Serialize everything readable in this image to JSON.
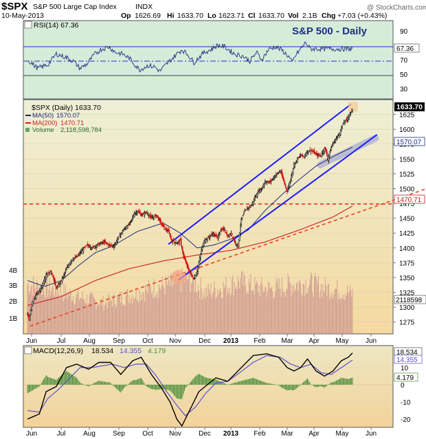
{
  "header": {
    "symbol": "$SPX",
    "name": "S&P 500 Large Cap Index",
    "exchange": "INDX",
    "date": "10-May-2013",
    "open_label": "Op",
    "open": "1626.69",
    "high_label": "Hi",
    "high": "1633.70",
    "low_label": "Lo",
    "low": "1623.71",
    "close_label": "Cl",
    "close": "1633.70",
    "volume_label": "Vol",
    "volume": "2.1B",
    "change_label": "Chg",
    "change": "+7.03 (+0.43%)",
    "watermark": "@ StockCharts.com"
  },
  "colors": {
    "rsi_bg": "#d5ecd9",
    "price_bg_top": "#eef0d6",
    "price_bg_bottom": "#f5d9a0",
    "macd_bg_top": "#eee7c3",
    "macd_bg_bottom": "#f3d29a",
    "channel": "#1a1aff",
    "ma50": "#1c2a7a",
    "ma200": "#cc1b1b",
    "support": "#e8421a",
    "hline": "#e6391c",
    "volume": "#c98f8f",
    "up_candle": "#000000",
    "down_candle": "#d01010",
    "macd_line": "#000000",
    "signal_line": "#5a4fd1",
    "histogram": "#4c8f3c",
    "current_price_box": "#000000"
  },
  "chart_data": [
    {
      "type": "line",
      "panel": "rsi",
      "label": "RSI(14) 67.36",
      "series": [
        {
          "name": "RSI(14)",
          "last": 67.36
        }
      ],
      "y_ticks": [
        90,
        70,
        50,
        30
      ],
      "reference_lines": [
        70,
        50,
        30
      ],
      "annotation": "S&P 500 - Daily",
      "last_label": "67.36",
      "anchors": [
        [
          0,
          52
        ],
        [
          12,
          40
        ],
        [
          24,
          45
        ],
        [
          34,
          60
        ],
        [
          46,
          55
        ],
        [
          54,
          50
        ],
        [
          62,
          40
        ],
        [
          70,
          46
        ],
        [
          78,
          58
        ],
        [
          86,
          66
        ],
        [
          96,
          70
        ],
        [
          104,
          62
        ],
        [
          112,
          60
        ],
        [
          120,
          54
        ],
        [
          132,
          38
        ],
        [
          142,
          44
        ],
        [
          150,
          42
        ],
        [
          156,
          36
        ],
        [
          164,
          46
        ],
        [
          176,
          60
        ],
        [
          182,
          66
        ],
        [
          190,
          58
        ],
        [
          196,
          48
        ],
        [
          208,
          62
        ],
        [
          216,
          66
        ],
        [
          224,
          72
        ],
        [
          232,
          70
        ],
        [
          244,
          60
        ],
        [
          254,
          57
        ],
        [
          262,
          50
        ],
        [
          270,
          62
        ],
        [
          276,
          52
        ],
        [
          284,
          66
        ],
        [
          292,
          70
        ],
        [
          300,
          65
        ],
        [
          308,
          56
        ],
        [
          312,
          48
        ],
        [
          316,
          58
        ],
        [
          324,
          70
        ],
        [
          328,
          76
        ],
        [
          333,
          67
        ]
      ]
    },
    {
      "type": "candlestick",
      "panel": "price",
      "ticker_label": "$SPX (Daily) 1633.70",
      "legend": [
        {
          "name": "MA(50)",
          "value": "1570.07"
        },
        {
          "name": "MA(200)",
          "value": "1470.71"
        },
        {
          "name": "Volume",
          "value": "2,118,598,784"
        }
      ],
      "x_ticks": [
        "Jun",
        "Jul",
        "Aug",
        "Sep",
        "Oct",
        "Nov",
        "Dec",
        "2013",
        "Feb",
        "Mar",
        "Apr",
        "May",
        "Jun"
      ],
      "y_ticks": [
        1625,
        1600,
        1575,
        1550,
        1525,
        1500,
        1475,
        1450,
        1425,
        1400,
        1375,
        1350,
        1325,
        1300,
        1275
      ],
      "ylim": [
        1255,
        1650
      ],
      "volume_ticks": [
        "4B",
        "3B",
        "2B",
        "1B"
      ],
      "volume_last_label": "2118598",
      "ma50_last": "1570.07",
      "ma200_last": "1470.71",
      "close_last": "1633.70",
      "horizontal_level": 1474,
      "price_anchors": [
        [
          0,
          1290
        ],
        [
          2,
          1278
        ],
        [
          6,
          1310
        ],
        [
          10,
          1320
        ],
        [
          16,
          1332
        ],
        [
          22,
          1355
        ],
        [
          28,
          1360
        ],
        [
          34,
          1332
        ],
        [
          40,
          1345
        ],
        [
          46,
          1365
        ],
        [
          52,
          1380
        ],
        [
          58,
          1385
        ],
        [
          64,
          1395
        ],
        [
          70,
          1405
        ],
        [
          76,
          1400
        ],
        [
          82,
          1405
        ],
        [
          90,
          1410
        ],
        [
          96,
          1405
        ],
        [
          102,
          1403
        ],
        [
          108,
          1420
        ],
        [
          114,
          1432
        ],
        [
          120,
          1440
        ],
        [
          126,
          1458
        ],
        [
          130,
          1462
        ],
        [
          134,
          1455
        ],
        [
          140,
          1460
        ],
        [
          146,
          1450
        ],
        [
          152,
          1455
        ],
        [
          158,
          1440
        ],
        [
          162,
          1432
        ],
        [
          166,
          1428
        ],
        [
          170,
          1412
        ],
        [
          176,
          1408
        ],
        [
          180,
          1413
        ],
        [
          184,
          1385
        ],
        [
          188,
          1370
        ],
        [
          192,
          1356
        ],
        [
          196,
          1348
        ],
        [
          200,
          1360
        ],
        [
          204,
          1390
        ],
        [
          208,
          1412
        ],
        [
          212,
          1416
        ],
        [
          218,
          1424
        ],
        [
          224,
          1418
        ],
        [
          228,
          1430
        ],
        [
          232,
          1432
        ],
        [
          236,
          1418
        ],
        [
          240,
          1425
        ],
        [
          244,
          1410
        ],
        [
          248,
          1403
        ],
        [
          252,
          1448
        ],
        [
          256,
          1462
        ],
        [
          260,
          1468
        ],
        [
          264,
          1472
        ],
        [
          268,
          1485
        ],
        [
          272,
          1495
        ],
        [
          276,
          1500
        ],
        [
          280,
          1512
        ],
        [
          284,
          1510
        ],
        [
          288,
          1515
        ],
        [
          292,
          1522
        ],
        [
          298,
          1530
        ],
        [
          302,
          1512
        ],
        [
          306,
          1495
        ],
        [
          310,
          1516
        ],
        [
          314,
          1540
        ],
        [
          318,
          1550
        ],
        [
          322,
          1556
        ],
        [
          326,
          1554
        ],
        [
          330,
          1563
        ],
        [
          334,
          1565
        ],
        [
          338,
          1560
        ],
        [
          342,
          1556
        ],
        [
          346,
          1556
        ],
        [
          350,
          1568
        ],
        [
          352,
          1562
        ],
        [
          354,
          1548
        ],
        [
          356,
          1562
        ],
        [
          360,
          1576
        ],
        [
          364,
          1585
        ],
        [
          368,
          1594
        ],
        [
          372,
          1610
        ],
        [
          376,
          1616
        ],
        [
          380,
          1626
        ],
        [
          383,
          1633.7
        ]
      ],
      "ma50_anchors": [
        [
          0,
          1345
        ],
        [
          20,
          1335
        ],
        [
          40,
          1345
        ],
        [
          60,
          1370
        ],
        [
          80,
          1392
        ],
        [
          100,
          1403
        ],
        [
          130,
          1428
        ],
        [
          160,
          1442
        ],
        [
          180,
          1425
        ],
        [
          200,
          1400
        ],
        [
          220,
          1405
        ],
        [
          240,
          1415
        ],
        [
          260,
          1430
        ],
        [
          280,
          1463
        ],
        [
          300,
          1490
        ],
        [
          320,
          1515
        ],
        [
          340,
          1538
        ],
        [
          360,
          1554
        ],
        [
          383,
          1570
        ]
      ],
      "ma200_anchors": [
        [
          0,
          1303
        ],
        [
          40,
          1318
        ],
        [
          80,
          1345
        ],
        [
          120,
          1365
        ],
        [
          160,
          1378
        ],
        [
          200,
          1388
        ],
        [
          240,
          1396
        ],
        [
          280,
          1410
        ],
        [
          320,
          1430
        ],
        [
          360,
          1452
        ],
        [
          383,
          1470.71
        ]
      ],
      "channel_upper": [
        [
          166,
          1406
        ],
        [
          381,
          1642
        ]
      ],
      "channel_lower": [
        [
          178,
          1346
        ],
        [
          412,
          1591
        ]
      ],
      "support_line": [
        [
          3,
          1268
        ],
        [
          410,
          1470
        ]
      ],
      "circle_at": [
        178,
        1350
      ],
      "recent_highlight": [
        [
          345,
          1540
        ],
        [
          410,
          1585
        ]
      ],
      "volume_baseline_bars": 384,
      "volume_anchors": [
        [
          0,
          3.2
        ],
        [
          30,
          2.9
        ],
        [
          60,
          2.4
        ],
        [
          90,
          2.0
        ],
        [
          120,
          2.5
        ],
        [
          150,
          3.0
        ],
        [
          170,
          3.2
        ],
        [
          190,
          3.6
        ],
        [
          210,
          2.7
        ],
        [
          230,
          3.0
        ],
        [
          250,
          3.4
        ],
        [
          270,
          3.0
        ],
        [
          290,
          2.9
        ],
        [
          310,
          3.2
        ],
        [
          330,
          3.3
        ],
        [
          350,
          3.0
        ],
        [
          370,
          2.8
        ],
        [
          383,
          2.6
        ]
      ]
    },
    {
      "type": "line",
      "panel": "macd",
      "label": "MACD(12,26,9) 18.534, 14.355, 4.179",
      "macd_name": "MACD(12,26,9)",
      "macd_value": "18.534",
      "signal_value": "14.355",
      "hist_value": "4.179",
      "y_ticks": [
        10,
        0,
        -10,
        -20
      ],
      "x_ticks": [
        "Jun",
        "Jul",
        "Aug",
        "Sep",
        "Oct",
        "Nov",
        "Dec",
        "2013",
        "Feb",
        "Mar",
        "Apr",
        "May",
        "Jun"
      ],
      "macd_anchors": [
        [
          0,
          -20
        ],
        [
          14,
          -17
        ],
        [
          22,
          -4
        ],
        [
          34,
          -1
        ],
        [
          46,
          10
        ],
        [
          58,
          12
        ],
        [
          72,
          9
        ],
        [
          84,
          13
        ],
        [
          98,
          13
        ],
        [
          110,
          6
        ],
        [
          124,
          14
        ],
        [
          134,
          16
        ],
        [
          146,
          6
        ],
        [
          158,
          -2
        ],
        [
          168,
          -10
        ],
        [
          176,
          -20
        ],
        [
          182,
          -24
        ],
        [
          192,
          -14
        ],
        [
          202,
          -4
        ],
        [
          212,
          0
        ],
        [
          222,
          4
        ],
        [
          236,
          2
        ],
        [
          252,
          10
        ],
        [
          266,
          17
        ],
        [
          282,
          18
        ],
        [
          296,
          16
        ],
        [
          306,
          10
        ],
        [
          314,
          8
        ],
        [
          322,
          10
        ],
        [
          330,
          15
        ],
        [
          340,
          8
        ],
        [
          350,
          5
        ],
        [
          360,
          8
        ],
        [
          370,
          14
        ],
        [
          378,
          16
        ],
        [
          383,
          18.5
        ]
      ],
      "signal_anchors": [
        [
          0,
          -15
        ],
        [
          14,
          -16
        ],
        [
          24,
          -8
        ],
        [
          36,
          -3
        ],
        [
          50,
          4
        ],
        [
          62,
          10
        ],
        [
          76,
          10
        ],
        [
          88,
          11
        ],
        [
          100,
          12
        ],
        [
          114,
          10
        ],
        [
          128,
          12
        ],
        [
          140,
          12
        ],
        [
          152,
          5
        ],
        [
          164,
          -4
        ],
        [
          176,
          -12
        ],
        [
          186,
          -18
        ],
        [
          198,
          -13
        ],
        [
          210,
          -5
        ],
        [
          222,
          1
        ],
        [
          236,
          2
        ],
        [
          250,
          7
        ],
        [
          266,
          13
        ],
        [
          282,
          17
        ],
        [
          298,
          16
        ],
        [
          310,
          12
        ],
        [
          322,
          10
        ],
        [
          334,
          12
        ],
        [
          346,
          7
        ],
        [
          358,
          6
        ],
        [
          370,
          10
        ],
        [
          383,
          14.355
        ]
      ]
    }
  ]
}
